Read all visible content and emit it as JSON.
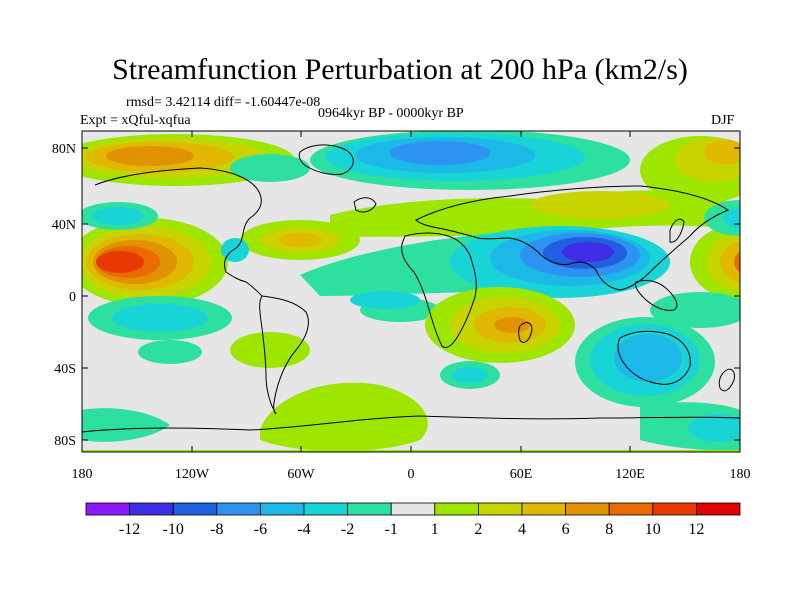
{
  "title": "Streamfunction Perturbation at 200 hPa (km2/s)",
  "stats": "rmsd= 3.42114 diff= -1.60447e-08",
  "experiment": "Expt = xQful-xqfua",
  "period": "0964kyr BP - 0000kyr BP",
  "season": "DJF",
  "lat_ticks": [
    "80N",
    "40N",
    "0",
    "40S",
    "80S"
  ],
  "lon_ticks": [
    "180",
    "120W",
    "60W",
    "0",
    "60E",
    "120E",
    "180"
  ],
  "colorbar": {
    "labels": [
      "-12",
      "-10",
      "-8",
      "-6",
      "-4",
      "-2",
      "-1",
      "1",
      "2",
      "4",
      "6",
      "8",
      "10",
      "12"
    ],
    "colors": [
      "#8c1aff",
      "#3f2ee5",
      "#1f5fe0",
      "#2c93f0",
      "#1cb8e8",
      "#19d4d6",
      "#2ee0a0",
      "#e6e6e6",
      "#9ee600",
      "#c7d400",
      "#e0b800",
      "#e09200",
      "#e86a00",
      "#e83a00",
      "#e00000"
    ]
  }
}
